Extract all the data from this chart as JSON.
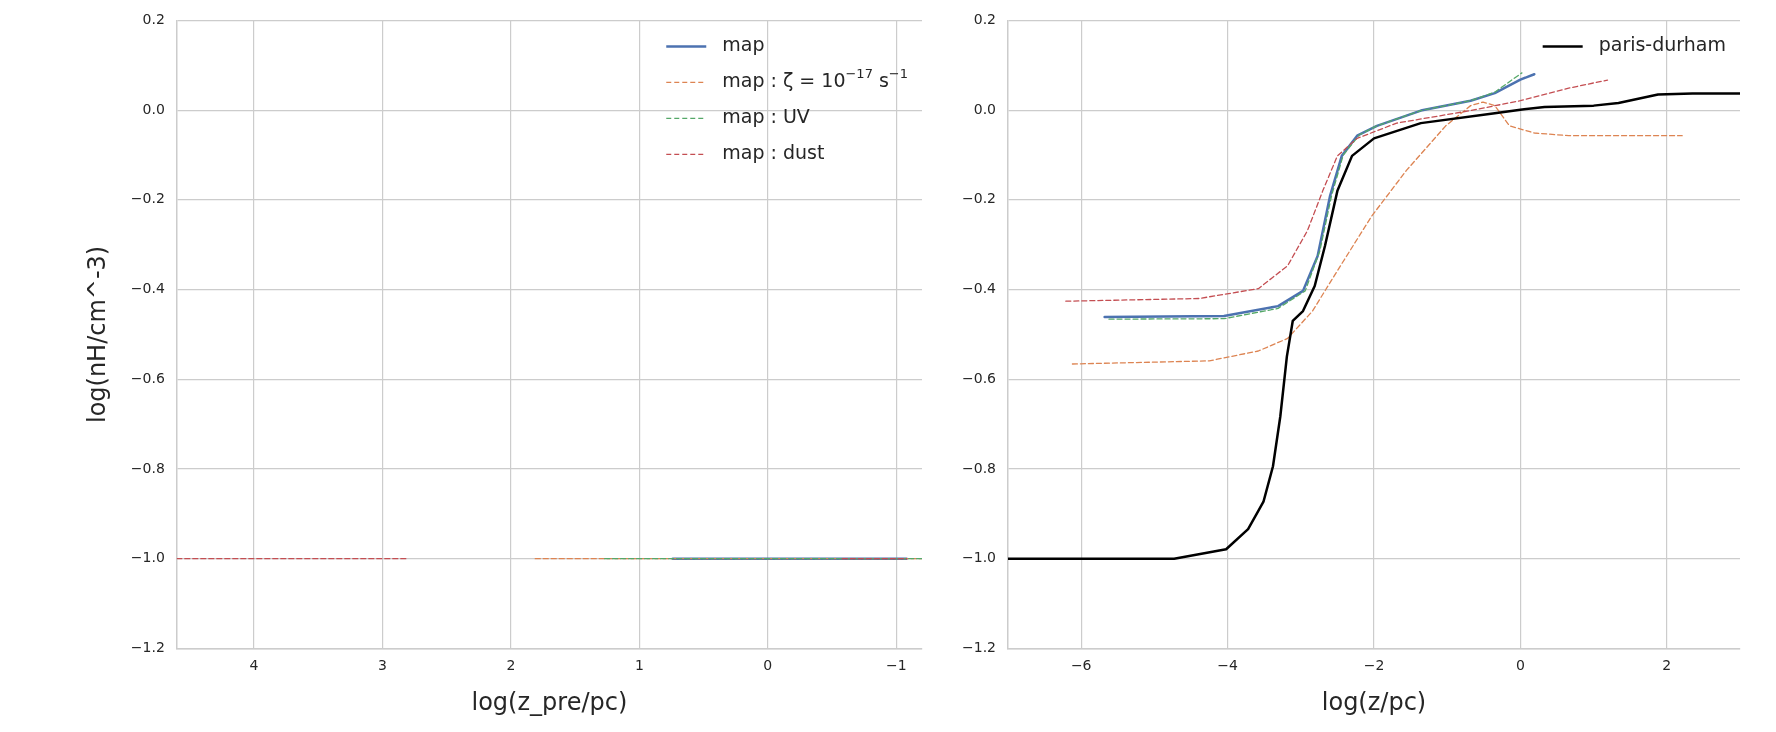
{
  "chart_data": [
    {
      "type": "line",
      "ylabel": "log(nH/cm^-3)",
      "xlabel": "log(z_pre/pc)",
      "xlim": [
        4.6,
        -1.2
      ],
      "ylim": [
        -1.2,
        0.2
      ],
      "xticks": [
        4,
        3,
        2,
        1,
        0,
        {
          "value": -1,
          "label": "−1"
        }
      ],
      "yticks": [
        {
          "value": -1.2,
          "label": "−1.2"
        },
        {
          "value": -1.0,
          "label": "−1.0"
        },
        {
          "value": -0.8,
          "label": "−0.8"
        },
        {
          "value": -0.6,
          "label": "−0.6"
        },
        {
          "value": -0.4,
          "label": "−0.4"
        },
        {
          "value": -0.2,
          "label": "−0.2"
        },
        {
          "value": 0,
          "label": "0.0"
        },
        {
          "value": 0.2,
          "label": "0.2"
        }
      ],
      "grid": true,
      "legend": "top right",
      "marker": "none",
      "series": [
        {
          "name": "map",
          "color": "#4c72b0",
          "line_style": "solid",
          "x": [
            0.74,
            -1.08
          ],
          "values": [
            -1.0,
            -1.0
          ]
        },
        {
          "name": "map : ζ = 10$^{−17}$ s$^{−1}$",
          "color": "#dd8452",
          "line_style": "dashed",
          "x": [
            1.81,
            -1.2
          ],
          "values": [
            -1.0,
            -1.0
          ]
        },
        {
          "name": "map : UV",
          "color": "#55a868",
          "line_style": "dashed",
          "x": [
            1.27,
            -1.2
          ],
          "values": [
            -1.0,
            -1.0
          ]
        },
        {
          "name": "map : dust",
          "color": "#c44e52",
          "line_style": "dashed",
          "x": [
            4.6,
            2.81,
            2.0,
            -0.58,
            -1.08
          ],
          "values": [
            -1.0,
            -1.0,
            null,
            -1.0,
            -1.0
          ]
        }
      ]
    },
    {
      "type": "line",
      "xlabel": "log(z/pc)",
      "xlim": [
        -7,
        3
      ],
      "ylim": [
        -1.2,
        0.2
      ],
      "xticks": [
        {
          "value": -6,
          "label": "−6"
        },
        {
          "value": -4,
          "label": "−4"
        },
        {
          "value": -2,
          "label": "−2"
        },
        0,
        2
      ],
      "yticks": [
        {
          "value": -1.2,
          "label": "−1.2"
        },
        {
          "value": -1.0,
          "label": "−1.0"
        },
        {
          "value": -0.8,
          "label": "−0.8"
        },
        {
          "value": -0.6,
          "label": "−0.6"
        },
        {
          "value": -0.4,
          "label": "−0.4"
        },
        {
          "value": -0.2,
          "label": "−0.2"
        },
        {
          "value": 0,
          "label": "0.0"
        },
        {
          "value": 0.2,
          "label": "0.2"
        }
      ],
      "grid": true,
      "legend": "top right",
      "marker": "none",
      "series": [
        {
          "color": "#4c72b0",
          "line_style": "solid",
          "x": [
            -5.68,
            -4.05,
            -3.31,
            -2.97,
            -2.77,
            -2.6,
            -2.44,
            -2.23,
            -1.96,
            -1.36,
            -0.68,
            -0.35,
            0,
            0.19
          ],
          "values": [
            -0.461,
            -0.459,
            -0.437,
            -0.403,
            -0.325,
            -0.191,
            -0.102,
            -0.057,
            -0.035,
            -0.001,
            0.021,
            0.038,
            0.068,
            0.08
          ]
        },
        {
          "color": "#dd8452",
          "line_style": "dashed",
          "x": [
            -6.12,
            -4.25,
            -3.58,
            -3.18,
            -2.84,
            -2.5,
            -2.03,
            -1.56,
            -1.02,
            -0.68,
            -0.51,
            -0.35,
            -0.15,
            0.19,
            0.66,
            2.21
          ],
          "values": [
            -0.566,
            -0.559,
            -0.537,
            -0.509,
            -0.448,
            -0.358,
            -0.236,
            -0.135,
            -0.035,
            0.01,
            0.018,
            0.01,
            -0.035,
            -0.051,
            -0.057,
            -0.057
          ]
        },
        {
          "color": "#55a868",
          "line_style": "dashed",
          "x": [
            -5.62,
            -4.05,
            -3.31,
            -2.94,
            -2.74,
            -2.58,
            -2.42,
            -2.2,
            -1.96,
            -1.36,
            -0.68,
            -0.35,
            0.02
          ],
          "values": [
            -0.466,
            -0.465,
            -0.442,
            -0.403,
            -0.314,
            -0.191,
            -0.1,
            -0.055,
            -0.035,
            -0.001,
            0.021,
            0.04,
            0.083
          ]
        },
        {
          "color": "#c44e52",
          "line_style": "dashed",
          "x": [
            -6.21,
            -4.39,
            -3.58,
            -3.18,
            -2.91,
            -2.7,
            -2.5,
            -2.23,
            -1.69,
            -0.68,
            0,
            0.66,
            1.19
          ],
          "values": [
            -0.426,
            -0.42,
            -0.398,
            -0.347,
            -0.269,
            -0.18,
            -0.102,
            -0.063,
            -0.029,
            -0.001,
            0.021,
            0.049,
            0.067
          ]
        },
        {
          "name": "paris-durham",
          "color": "#000000",
          "line_style": "solid",
          "x": [
            -7,
            -4.73,
            -4.02,
            -3.72,
            -3.51,
            -3.38,
            -3.28,
            -3.19,
            -3.11,
            -2.97,
            -2.81,
            -2.67,
            -2.5,
            -2.3,
            -2,
            -1.36,
            -0.35,
            0,
            0.33,
            1,
            1.34,
            1.88,
            2.35,
            3
          ],
          "values": [
            -1.0,
            -1.0,
            -0.979,
            -0.934,
            -0.873,
            -0.794,
            -0.683,
            -0.549,
            -0.47,
            -0.448,
            -0.392,
            -0.303,
            -0.18,
            -0.102,
            -0.063,
            -0.029,
            -0.007,
            0.001,
            0.007,
            0.01,
            0.016,
            0.035,
            0.037,
            0.037
          ]
        }
      ]
    }
  ]
}
